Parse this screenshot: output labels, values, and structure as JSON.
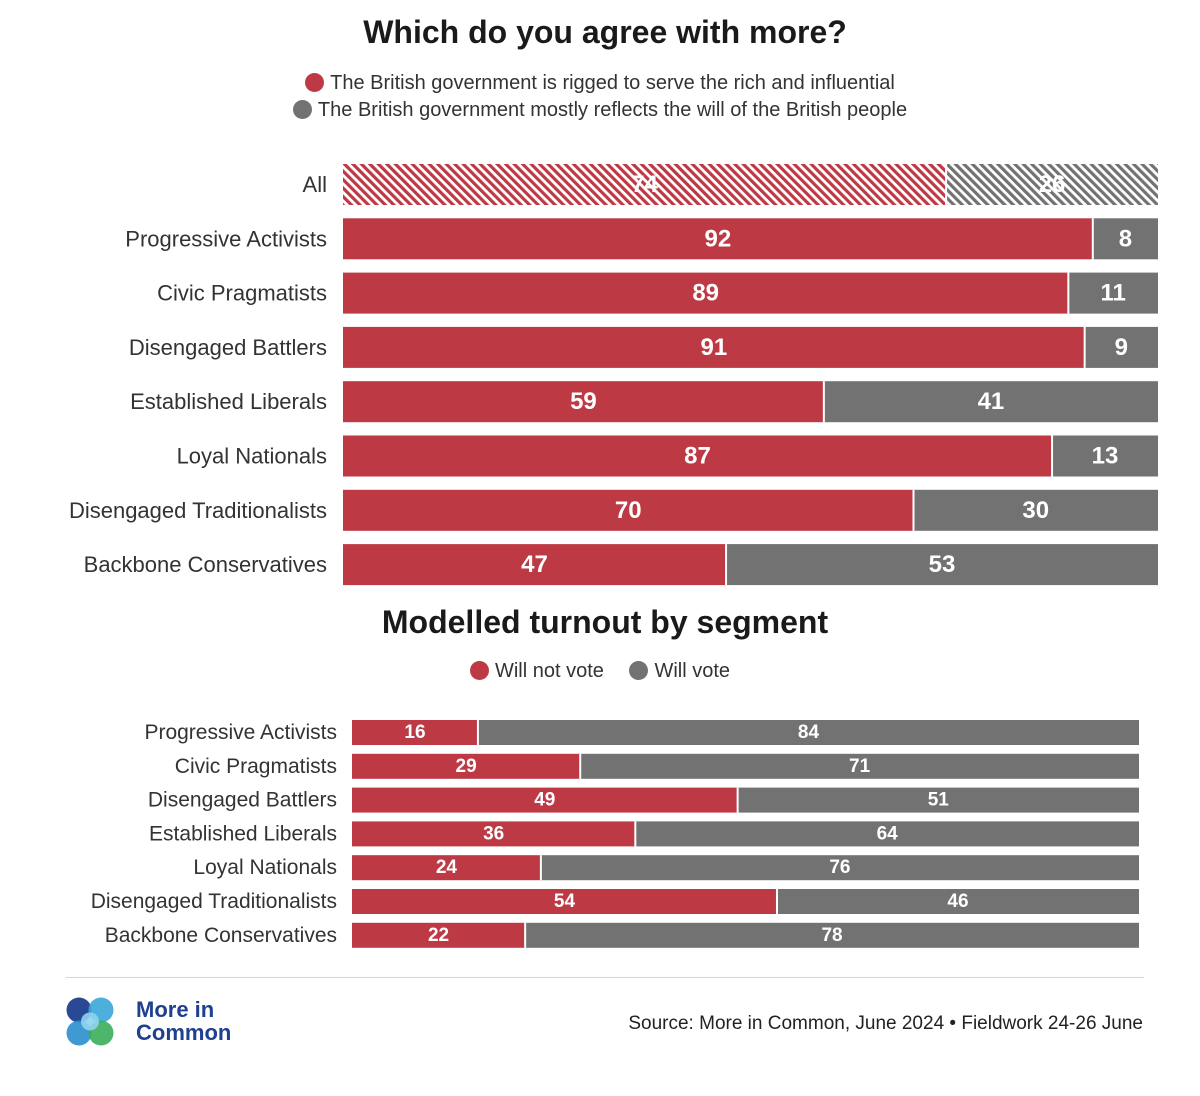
{
  "colors": {
    "red": "#bd3a45",
    "grey": "#727272"
  },
  "charts": [
    {
      "title": "Which do you agree with more?",
      "legend": [
        {
          "label": "The British government is rigged to serve the rich and influential",
          "color": "#bd3a45"
        },
        {
          "label": "The British government mostly reflects the will of the British people",
          "color": "#727272"
        }
      ]
    },
    {
      "title": "Modelled turnout by segment",
      "legend": [
        {
          "label": "Will not vote",
          "color": "#bd3a45"
        },
        {
          "label": "Will vote",
          "color": "#727272"
        }
      ]
    }
  ],
  "chart_data": [
    {
      "type": "bar",
      "stacked": true,
      "orientation": "horizontal",
      "title": "Which do you agree with more?",
      "categories": [
        "All",
        "Progressive Activists",
        "Civic Pragmatists",
        "Disengaged Battlers",
        "Established Liberals",
        "Loyal Nationals",
        "Disengaged Traditionalists",
        "Backbone Conservatives"
      ],
      "series": [
        {
          "name": "The British government is rigged to serve the rich and influential",
          "values": [
            74,
            92,
            89,
            91,
            59,
            87,
            70,
            47
          ]
        },
        {
          "name": "The British government mostly reflects the will of the British people",
          "values": [
            26,
            8,
            11,
            9,
            41,
            13,
            30,
            53
          ]
        }
      ],
      "xlim": [
        0,
        100
      ],
      "highlighted_category": "All"
    },
    {
      "type": "bar",
      "stacked": true,
      "orientation": "horizontal",
      "title": "Modelled turnout by segment",
      "categories": [
        "Progressive Activists",
        "Civic Pragmatists",
        "Disengaged Battlers",
        "Established Liberals",
        "Loyal Nationals",
        "Disengaged Traditionalists",
        "Backbone Conservatives"
      ],
      "series": [
        {
          "name": "Will not vote",
          "values": [
            16,
            29,
            49,
            36,
            24,
            54,
            22
          ]
        },
        {
          "name": "Will vote",
          "values": [
            84,
            71,
            51,
            64,
            76,
            46,
            78
          ]
        }
      ],
      "xlim": [
        0,
        100
      ]
    }
  ],
  "footer": {
    "logo_line1": "More in",
    "logo_line2": "Common",
    "source": "Source: More in Common, June 2024 • Fieldwork 24-26 June"
  }
}
